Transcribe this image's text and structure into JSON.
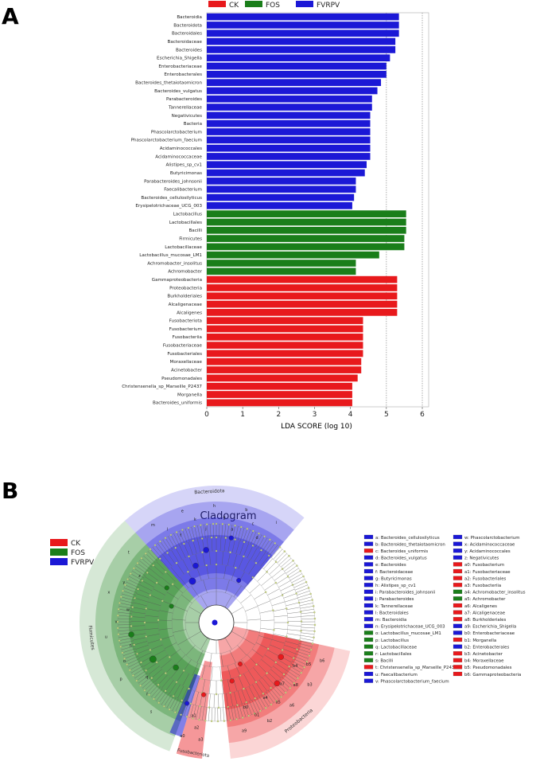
{
  "panel_a": {
    "label": "A",
    "legend": [
      {
        "name": "CK",
        "color": "#e8191c"
      },
      {
        "name": "FOS",
        "color": "#1a7e1a"
      },
      {
        "name": "FVRPV",
        "color": "#1b18d6"
      }
    ]
  },
  "chart_data": {
    "type": "bar",
    "orientation": "horizontal",
    "xlabel": "LDA SCORE (log 10)",
    "xlim": [
      0,
      6
    ],
    "xticks": [
      0,
      1,
      2,
      3,
      4,
      5,
      6
    ],
    "reference_lines": [
      5,
      6
    ],
    "bars": [
      {
        "label": "Bacteroidia",
        "value": 5.35,
        "group": "FVRPV"
      },
      {
        "label": "Bacteroidota",
        "value": 5.35,
        "group": "FVRPV"
      },
      {
        "label": "Bacteroidales",
        "value": 5.35,
        "group": "FVRPV"
      },
      {
        "label": "Bacteroidaceae",
        "value": 5.25,
        "group": "FVRPV"
      },
      {
        "label": "Bacteroides",
        "value": 5.25,
        "group": "FVRPV"
      },
      {
        "label": "Escherichia_Shigella",
        "value": 5.1,
        "group": "FVRPV"
      },
      {
        "label": "Enterobacteriaceae",
        "value": 5.0,
        "group": "FVRPV"
      },
      {
        "label": "Enterobacterales",
        "value": 5.0,
        "group": "FVRPV"
      },
      {
        "label": "Bacteroides_thetaiotaomicron",
        "value": 4.85,
        "group": "FVRPV"
      },
      {
        "label": "Bacteroides_vulgatus",
        "value": 4.75,
        "group": "FVRPV"
      },
      {
        "label": "Parabacteroides",
        "value": 4.6,
        "group": "FVRPV"
      },
      {
        "label": "Tannerellaceae",
        "value": 4.6,
        "group": "FVRPV"
      },
      {
        "label": "Negativicutes",
        "value": 4.55,
        "group": "FVRPV"
      },
      {
        "label": "Bacteria",
        "value": 4.55,
        "group": "FVRPV"
      },
      {
        "label": "Phascolarctobacterium",
        "value": 4.55,
        "group": "FVRPV"
      },
      {
        "label": "Phascolarctobacterium_faecium",
        "value": 4.55,
        "group": "FVRPV"
      },
      {
        "label": "Acidaminococcales",
        "value": 4.55,
        "group": "FVRPV"
      },
      {
        "label": "Acidaminococcaceae",
        "value": 4.55,
        "group": "FVRPV"
      },
      {
        "label": "Alistipes_sp_cv1",
        "value": 4.45,
        "group": "FVRPV"
      },
      {
        "label": "Butyricimonas",
        "value": 4.4,
        "group": "FVRPV"
      },
      {
        "label": "Parabacteroides_johnsonii",
        "value": 4.15,
        "group": "FVRPV"
      },
      {
        "label": "Faecalibacterium",
        "value": 4.15,
        "group": "FVRPV"
      },
      {
        "label": "Bacteroides_cellulosilyticus",
        "value": 4.1,
        "group": "FVRPV"
      },
      {
        "label": "Erysipelotrichaceae_UCG_003",
        "value": 4.05,
        "group": "FVRPV"
      },
      {
        "label": "Lactobacillus",
        "value": 5.55,
        "group": "FOS"
      },
      {
        "label": "Lactobacillales",
        "value": 5.55,
        "group": "FOS"
      },
      {
        "label": "Bacilli",
        "value": 5.55,
        "group": "FOS"
      },
      {
        "label": "Firmicutes",
        "value": 5.5,
        "group": "FOS"
      },
      {
        "label": "Lactobacillaceae",
        "value": 5.5,
        "group": "FOS"
      },
      {
        "label": "Lactobacillus_mucosae_LM1",
        "value": 4.8,
        "group": "FOS"
      },
      {
        "label": "Achromobacter_insolitus",
        "value": 4.15,
        "group": "FOS"
      },
      {
        "label": "Achromobacter",
        "value": 4.15,
        "group": "FOS"
      },
      {
        "label": "Gammaproteobacteria",
        "value": 5.3,
        "group": "CK"
      },
      {
        "label": "Proteobacteria",
        "value": 5.3,
        "group": "CK"
      },
      {
        "label": "Burkholderiales",
        "value": 5.3,
        "group": "CK"
      },
      {
        "label": "Alcaligenaceae",
        "value": 5.3,
        "group": "CK"
      },
      {
        "label": "Alcaligenes",
        "value": 5.3,
        "group": "CK"
      },
      {
        "label": "Fusobacteriota",
        "value": 4.35,
        "group": "CK"
      },
      {
        "label": "Fusobacterium",
        "value": 4.35,
        "group": "CK"
      },
      {
        "label": "Fusobacteriia",
        "value": 4.35,
        "group": "CK"
      },
      {
        "label": "Fusobacteriaceae",
        "value": 4.35,
        "group": "CK"
      },
      {
        "label": "Fusobacteriales",
        "value": 4.35,
        "group": "CK"
      },
      {
        "label": "Moraxellaceae",
        "value": 4.3,
        "group": "CK"
      },
      {
        "label": "Acinetobacter",
        "value": 4.3,
        "group": "CK"
      },
      {
        "label": "Pseudomonadales",
        "value": 4.2,
        "group": "CK"
      },
      {
        "label": "Christensenella_sp_Marseille_P2437",
        "value": 4.05,
        "group": "CK"
      },
      {
        "label": "Morganella",
        "value": 4.05,
        "group": "CK"
      },
      {
        "label": "Bacteroides_uniformis",
        "value": 4.05,
        "group": "CK"
      }
    ]
  },
  "panel_b": {
    "label": "B",
    "title": "Cladogram",
    "legend": [
      {
        "name": "CK",
        "color": "#e8191c"
      },
      {
        "name": "FOS",
        "color": "#1a7e1a"
      },
      {
        "name": "FVRPV",
        "color": "#1b18d6"
      }
    ],
    "clade_labels": {
      "bacteroidota": "Bacteroidota",
      "firmicutes": "Firmicutes",
      "proteobacteria": "Proteobacteria",
      "fusobacteriota": "Fusobacteriota"
    },
    "key_col1": [
      {
        "text": "a: Bacteroides_cellulosilyticus",
        "group": "FVRPV"
      },
      {
        "text": "b: Bacteroides_thetaiotaomicron",
        "group": "FVRPV"
      },
      {
        "text": "c: Bacteroides_uniformis",
        "group": "CK"
      },
      {
        "text": "d: Bacteroides_vulgatus",
        "group": "FVRPV"
      },
      {
        "text": "e: Bacteroides",
        "group": "FVRPV"
      },
      {
        "text": "f: Bacteroidaceae",
        "group": "FVRPV"
      },
      {
        "text": "g: Butyricimonas",
        "group": "FVRPV"
      },
      {
        "text": "h: Alistipes_sp_cv1",
        "group": "FVRPV"
      },
      {
        "text": "i: Parabacteroides_johnsonii",
        "group": "FVRPV"
      },
      {
        "text": "j: Parabacteroides",
        "group": "FVRPV"
      },
      {
        "text": "k: Tannerellaceae",
        "group": "FVRPV"
      },
      {
        "text": "l: Bacteroidales",
        "group": "FVRPV"
      },
      {
        "text": "m: Bacteroidia",
        "group": "FVRPV"
      },
      {
        "text": "n: Erysipelotrichaceae_UCG_003",
        "group": "FVRPV"
      },
      {
        "text": "o: Lactobacillus_mucosae_LM1",
        "group": "FOS"
      },
      {
        "text": "p: Lactobacillus",
        "group": "FOS"
      },
      {
        "text": "q: Lactobacillaceae",
        "group": "FOS"
      },
      {
        "text": "r: Lactobacillales",
        "group": "FOS"
      },
      {
        "text": "s: Bacilli",
        "group": "FOS"
      },
      {
        "text": "t: Christensenella_sp_Marseille_P2437",
        "group": "CK"
      },
      {
        "text": "u: Faecalibacterium",
        "group": "FVRPV"
      },
      {
        "text": "v: Phascolarctobacterium_faecium",
        "group": "FVRPV"
      }
    ],
    "key_col2": [
      {
        "text": "w: Phascolarctobacterium",
        "group": "FVRPV"
      },
      {
        "text": "x: Acidaminococcaceae",
        "group": "FVRPV"
      },
      {
        "text": "y: Acidaminococcales",
        "group": "FVRPV"
      },
      {
        "text": "z: Negativicutes",
        "group": "FVRPV"
      },
      {
        "text": "a0: Fusobacterium",
        "group": "CK"
      },
      {
        "text": "a1: Fusobacteriaceae",
        "group": "CK"
      },
      {
        "text": "a2: Fusobacteriales",
        "group": "CK"
      },
      {
        "text": "a3: Fusobacteriia",
        "group": "CK"
      },
      {
        "text": "a4: Achromobacter_insolitus",
        "group": "FOS"
      },
      {
        "text": "a5: Achromobacter",
        "group": "FOS"
      },
      {
        "text": "a6: Alcaligenes",
        "group": "CK"
      },
      {
        "text": "a7: Alcaligenaceae",
        "group": "CK"
      },
      {
        "text": "a8: Burkholderiales",
        "group": "CK"
      },
      {
        "text": "a9: Escherichia_Shigella",
        "group": "FVRPV"
      },
      {
        "text": "b0: Enterobacteriaceae",
        "group": "FVRPV"
      },
      {
        "text": "b1: Morganella",
        "group": "CK"
      },
      {
        "text": "b2: Enterobacterales",
        "group": "FVRPV"
      },
      {
        "text": "b3: Acinetobacter",
        "group": "CK"
      },
      {
        "text": "b4: Moraxellaceae",
        "group": "CK"
      },
      {
        "text": "b5: Pseudomonadales",
        "group": "CK"
      },
      {
        "text": "b6: Gammaproteobacteria",
        "group": "CK"
      }
    ],
    "sector_letters": {
      "bacteroidota": [
        "m",
        "l",
        "f",
        "e",
        "k",
        "j",
        "h",
        "g",
        "a",
        "b",
        "c",
        "d",
        "i"
      ],
      "firmicutes": [
        "s",
        "r",
        "q",
        "p",
        "o",
        "n",
        "u",
        "v",
        "w",
        "x",
        "y",
        "z",
        "t"
      ],
      "proteobacteria": [
        "b6",
        "b5",
        "b4",
        "b3",
        "a8",
        "a7",
        "a6",
        "a5",
        "a4",
        "b2",
        "b1",
        "b0",
        "a9"
      ],
      "fusobacteriota": [
        "a3",
        "a2",
        "a1",
        "a0"
      ]
    }
  }
}
